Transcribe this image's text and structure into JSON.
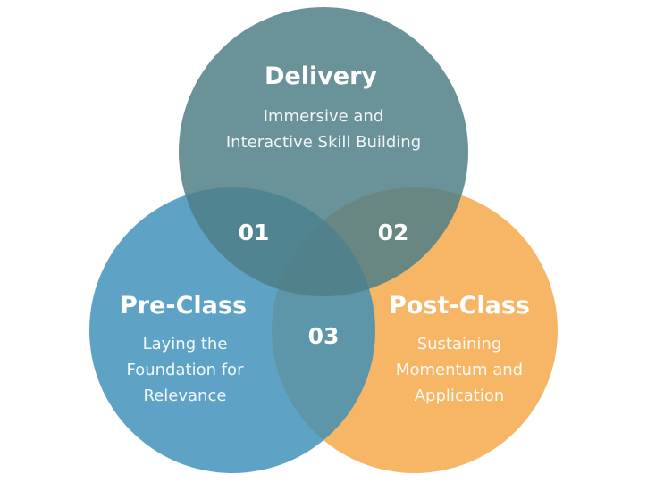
{
  "colors": {
    "delivery": "#4f7f87",
    "pre_class": "#3a8fb8",
    "post_class": "#f5a643",
    "text": "#ffffff"
  },
  "circles": {
    "delivery": {
      "title": "Delivery",
      "lines": [
        "Immersive and",
        "Interactive Skill Building"
      ]
    },
    "pre_class": {
      "title": "Pre-Class",
      "lines": [
        "Laying the",
        "Foundation for",
        "Relevance"
      ]
    },
    "post_class": {
      "title": "Post-Class",
      "lines": [
        "Sustaining",
        "Momentum and",
        "Application"
      ]
    }
  },
  "overlaps": {
    "delivery_pre": "01",
    "delivery_post": "02",
    "pre_post": "03"
  }
}
